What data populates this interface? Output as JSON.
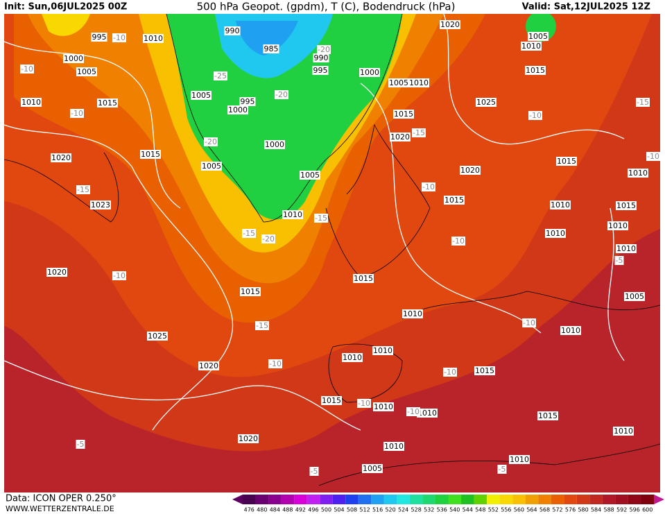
{
  "header": {
    "init": "Init: Sun,06JUL2025 00Z",
    "title": "500 hPa Geopot. (gpdm), T (C), Bodendruck (hPa)",
    "valid": "Valid: Sat,12JUL2025 12Z"
  },
  "map": {
    "isobar_labels": [
      995,
      1010,
      990,
      985,
      990,
      995,
      1000,
      1005,
      1000,
      1005,
      1010,
      1020,
      1005,
      1010,
      1015,
      1010,
      1015,
      1005,
      995,
      1000,
      1015,
      1025,
      1020,
      1000,
      1015,
      1020,
      1005,
      1005,
      1020,
      1015,
      1010,
      1015,
      1010,
      1015,
      1023,
      1010,
      1010,
      1010,
      1010,
      1020,
      1015,
      1015,
      1005,
      1010,
      1010,
      1025,
      1010,
      1010,
      1020,
      1015,
      1015,
      1010,
      1010,
      1015,
      1020,
      1010,
      1010,
      1010,
      1005
    ],
    "temperature_labels": [
      -10,
      -10,
      -10,
      -25,
      -20,
      -20,
      -20,
      -15,
      -15,
      -20,
      -15,
      -10,
      -15,
      -10,
      -15,
      -10,
      -10,
      -15,
      -10,
      -10,
      -10,
      -10,
      -10,
      -10,
      -5,
      -5,
      -5,
      -5
    ]
  },
  "legend": {
    "values": [
      476,
      480,
      484,
      488,
      492,
      496,
      500,
      504,
      508,
      512,
      516,
      520,
      524,
      528,
      532,
      536,
      540,
      544,
      548,
      552,
      556,
      560,
      564,
      568,
      572,
      576,
      580,
      584,
      588,
      592,
      596,
      600
    ],
    "colors": [
      "#4a0050",
      "#6a0070",
      "#8a008f",
      "#b000b0",
      "#d800d8",
      "#c020f0",
      "#8020f0",
      "#5020f0",
      "#2040f0",
      "#2070f0",
      "#20a0f0",
      "#20c8f0",
      "#20e8e0",
      "#20e0a0",
      "#20d870",
      "#20d040",
      "#40e020",
      "#20c020",
      "#60d000",
      "#f0f000",
      "#f8d800",
      "#f8c000",
      "#f0a000",
      "#f08000",
      "#e86000",
      "#e04810",
      "#d03818",
      "#c02820",
      "#b01828",
      "#a01020",
      "#900818",
      "#800010"
    ]
  },
  "footer": {
    "source": "Data: ICON OPER 0.250°",
    "site": "WWW.WETTERZENTRALE.DE"
  }
}
